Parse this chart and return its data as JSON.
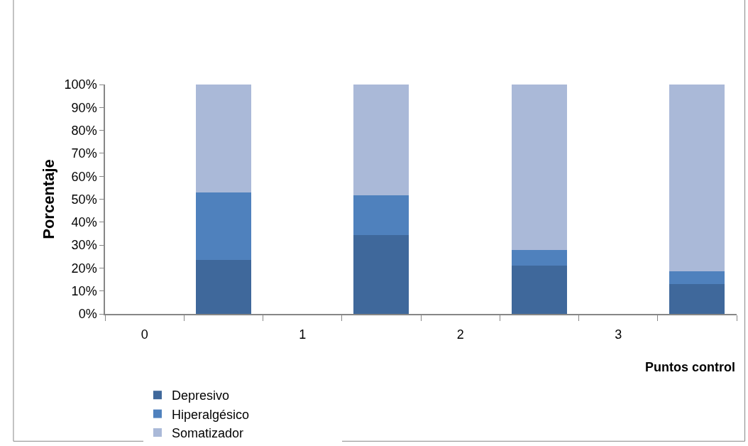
{
  "chart_data": {
    "type": "bar",
    "stacked": true,
    "xlabel": "Puntos control",
    "ylabel": "Porcentaje",
    "categories": [
      "0",
      null,
      "1",
      null,
      "2",
      null,
      "3",
      null
    ],
    "series": [
      {
        "name": "Depresivo",
        "color": "#3f689b",
        "values": [
          null,
          23.6,
          null,
          34.4,
          null,
          21.0,
          null,
          13.0
        ]
      },
      {
        "name": "Hiperalgésico",
        "color": "#4f81bd",
        "values": [
          null,
          29.2,
          null,
          17.2,
          null,
          7.0,
          null,
          5.7
        ]
      },
      {
        "name": "Somatizador",
        "color": "#aab9d8",
        "values": [
          null,
          47.2,
          null,
          48.4,
          null,
          72.0,
          null,
          81.3
        ]
      }
    ],
    "ylim": [
      0,
      100
    ],
    "yticks": [
      {
        "value": 0,
        "label": "0%"
      },
      {
        "value": 10,
        "label": "10%"
      },
      {
        "value": 20,
        "label": "20%"
      },
      {
        "value": 30,
        "label": "30%"
      },
      {
        "value": 40,
        "label": "40%"
      },
      {
        "value": 50,
        "label": "50%"
      },
      {
        "value": 60,
        "label": "60%"
      },
      {
        "value": 70,
        "label": "70%"
      },
      {
        "value": 80,
        "label": "80%"
      },
      {
        "value": 90,
        "label": "90%"
      },
      {
        "value": 100,
        "label": "100%"
      }
    ],
    "legend": "bottom"
  }
}
